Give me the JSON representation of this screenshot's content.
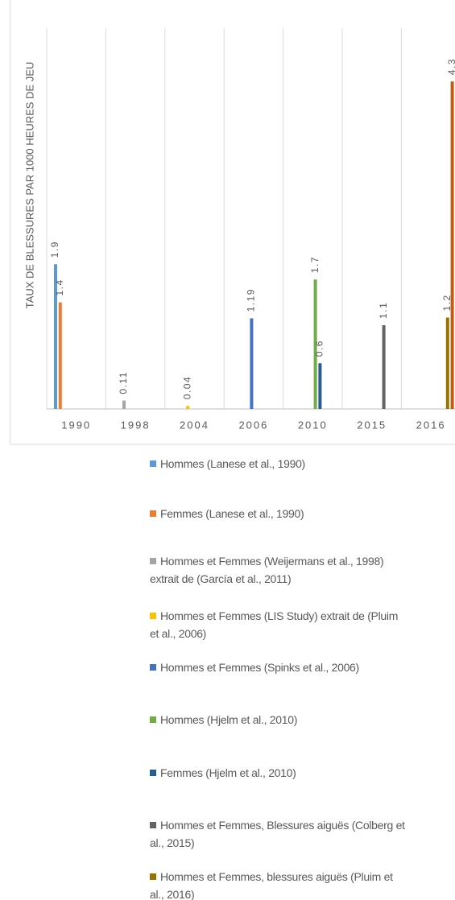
{
  "chart_data": {
    "type": "bar",
    "y_label": "TAUX DE BLESSURES PAR 1000 HEURES DE JEU",
    "categories": [
      "1990",
      "1998",
      "2004",
      "2006",
      "2010",
      "2015",
      "2016"
    ],
    "ylim": [
      0,
      5
    ],
    "series": [
      {
        "name": "Hommes (Lanese et al., 1990)",
        "color": "#5b9bd5",
        "values": [
          1.9,
          null,
          null,
          null,
          null,
          null,
          null
        ]
      },
      {
        "name": "Femmes (Lanese et al., 1990)",
        "color": "#ed7d31",
        "values": [
          1.4,
          null,
          null,
          null,
          null,
          null,
          null
        ]
      },
      {
        "name": "Hommes et Femmes (Weijermans et al., 1998) extrait de (García et al., 2011)",
        "color": "#a5a5a5",
        "values": [
          null,
          0.11,
          null,
          null,
          null,
          null,
          null
        ]
      },
      {
        "name": "Hommes et Femmes (LIS Study) extrait de (Pluim et al., 2006)",
        "color": "#ffc000",
        "values": [
          null,
          null,
          0.04,
          null,
          null,
          null,
          null
        ]
      },
      {
        "name": "Hommes et Femmes (Spinks et al., 2006)",
        "color": "#4472c4",
        "values": [
          null,
          null,
          null,
          1.19,
          null,
          null,
          null
        ]
      },
      {
        "name": "Hommes (Hjelm et al., 2010)",
        "color": "#70ad47",
        "values": [
          null,
          null,
          null,
          null,
          1.7,
          null,
          null
        ]
      },
      {
        "name": "Femmes (Hjelm et al., 2010)",
        "color": "#255e91",
        "values": [
          null,
          null,
          null,
          null,
          0.6,
          null,
          null
        ]
      },
      {
        "name": "Hommes et Femmes, Blessures aiguës (Colberg et al., 2015)",
        "color": "#636363",
        "values": [
          null,
          null,
          null,
          null,
          null,
          1.1,
          null
        ]
      },
      {
        "name": "Hommes et Femmes, blessures aiguës (Pluim et al., 2016)",
        "color": "#997300",
        "values": [
          null,
          null,
          null,
          null,
          null,
          null,
          1.2
        ]
      },
      {
        "color": "#c55a11",
        "values": [
          null,
          null,
          null,
          null,
          null,
          null,
          4.3
        ]
      }
    ]
  }
}
